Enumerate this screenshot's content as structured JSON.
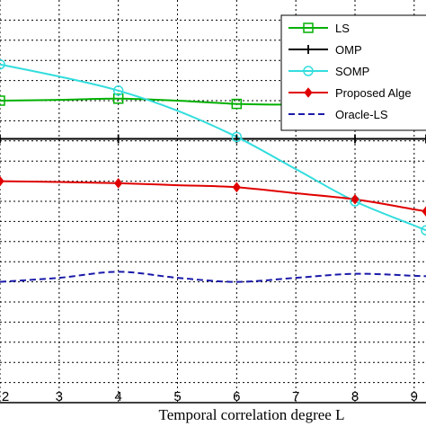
{
  "chart_data": {
    "type": "line",
    "xlabel": "Temporal correlation degree L",
    "ylabel": "",
    "title": "",
    "x": [
      2,
      3,
      4,
      5,
      6,
      7,
      8,
      9
    ],
    "xlim": [
      2,
      9.2
    ],
    "ylim": [
      0,
      1
    ],
    "grid": true,
    "legend_position": "top-right",
    "series": [
      {
        "name": "LS",
        "color": "#00b000",
        "marker": "square",
        "dash": "solid",
        "values": [
          0.75,
          0.752,
          0.755,
          0.75,
          0.742,
          0.74,
          0.74,
          0.738
        ]
      },
      {
        "name": "OMP",
        "color": "#000000",
        "marker": "plus",
        "dash": "solid",
        "values": [
          0.655,
          0.655,
          0.655,
          0.655,
          0.655,
          0.655,
          0.655,
          0.655
        ]
      },
      {
        "name": "SOMP",
        "color": "#33dddd",
        "marker": "circle",
        "dash": "solid",
        "values": [
          0.84,
          0.81,
          0.775,
          0.725,
          0.66,
          0.58,
          0.5,
          0.44
        ]
      },
      {
        "name": "Proposed Alge",
        "color": "#e00000",
        "marker": "diamond",
        "dash": "solid",
        "values": [
          0.55,
          0.548,
          0.545,
          0.54,
          0.535,
          0.52,
          0.505,
          0.48
        ]
      },
      {
        "name": "Oracle-LS",
        "color": "#1a1aaa",
        "marker": "none",
        "dash": "dashed",
        "values": [
          0.3,
          0.31,
          0.325,
          0.31,
          0.3,
          0.31,
          0.32,
          0.315
        ]
      }
    ],
    "marker_x": [
      2,
      4,
      6,
      8,
      9.2
    ]
  }
}
